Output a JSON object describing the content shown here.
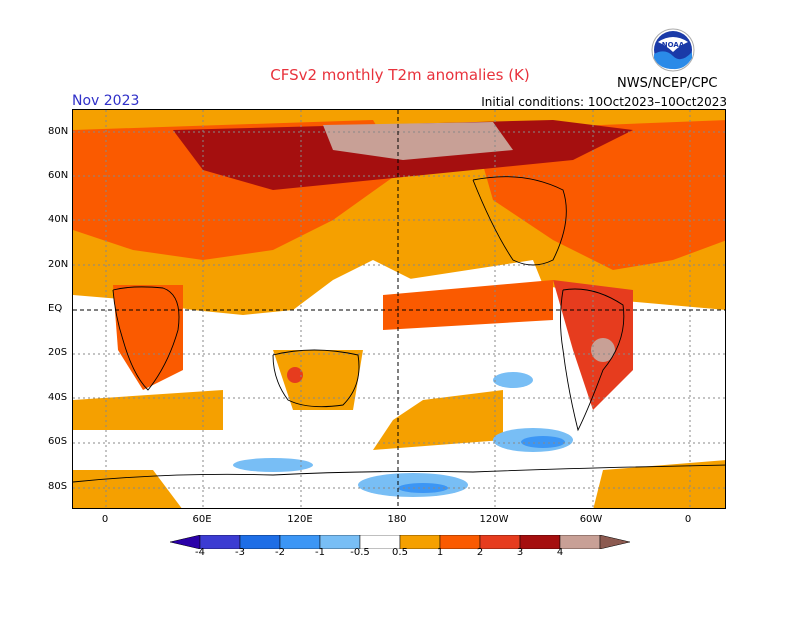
{
  "header": {
    "title": "CFSv2 monthly T2m anomalies (K)",
    "month": "Nov 2023",
    "initial_conditions": "Initial conditions: 10Oct2023–10Oct2023",
    "agency": "NWS/NCEP/CPC",
    "logo_text": "NOAA"
  },
  "axes": {
    "lat_labels": [
      "80N",
      "60N",
      "40N",
      "20N",
      "EQ",
      "20S",
      "40S",
      "60S",
      "80S"
    ],
    "lon_labels": [
      "0",
      "60E",
      "120E",
      "180",
      "120W",
      "60W",
      "0"
    ]
  },
  "colorbar": {
    "labels": [
      "-4",
      "-3",
      "-2",
      "-1",
      "-0.5",
      "0.5",
      "1",
      "2",
      "3",
      "4"
    ],
    "colors": [
      "#2a00a8",
      "#3c3cd2",
      "#1e6ee6",
      "#3c96f5",
      "#78bef5",
      "#ffffff",
      "#f5a000",
      "#fa5a00",
      "#e63c1e",
      "#a50f0f",
      "#c8a096",
      "#8c5a50"
    ]
  }
}
